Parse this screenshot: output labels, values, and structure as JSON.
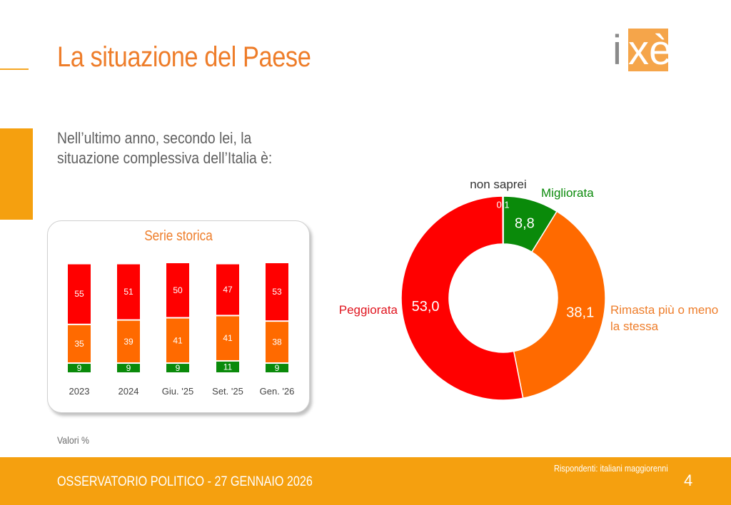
{
  "header": {
    "title": "La situazione del Paese"
  },
  "logo": {
    "text": "ixè"
  },
  "question": "Nell’ultimo anno, secondo lei, la situazione complessiva dell’Italia è:",
  "note": "Valori %",
  "footer": {
    "left": "OSSERVATORIO POLITICO - 27 GENNAIO 2026",
    "respondents": "Rispondenti: italiani maggiorenni",
    "page": "4"
  },
  "colors": {
    "red": "#ff0000",
    "orange": "#ff6a00",
    "green": "#0a8a0a",
    "accent": "#ee7d2a",
    "footer": "#f5a00f"
  },
  "chart_data": [
    {
      "type": "bar",
      "stacked": true,
      "title": "Serie storica",
      "categories": [
        "2023",
        "2024",
        "Giu. '25",
        "Set. '25",
        "Gen. '26"
      ],
      "series": [
        {
          "color": "#0a8a0a",
          "values": [
            9,
            9,
            9,
            11,
            9
          ]
        },
        {
          "color": "#ff6a00",
          "values": [
            35,
            39,
            41,
            41,
            38
          ]
        },
        {
          "color": "#ff0000",
          "values": [
            55,
            51,
            50,
            47,
            53
          ]
        }
      ]
    },
    {
      "type": "pie",
      "donut": true,
      "slices": [
        {
          "label": "Migliorata",
          "value": 8.8,
          "display": "8,8",
          "color": "#0a8a0a",
          "label_color": "#0a8a0a"
        },
        {
          "label": "Rimasta più o meno la stessa",
          "value": 38.1,
          "display": "38,1",
          "color": "#ff6a00",
          "label_color": "#ee7d2a"
        },
        {
          "label": "Peggiorata",
          "value": 53.0,
          "display": "53,0",
          "color": "#ff0000",
          "label_color": "#e0141e"
        },
        {
          "label": "non saprei",
          "value": 0.1,
          "display": "0,1",
          "color": "#ff0000",
          "label_color": "#333333"
        }
      ]
    }
  ]
}
